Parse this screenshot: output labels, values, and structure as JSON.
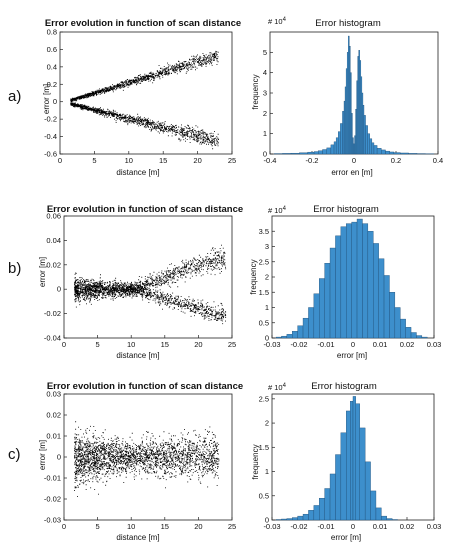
{
  "rows": [
    {
      "label": "a)",
      "scatter": {
        "title": "Error evolution in function of scan distance",
        "xlabel": "distance [m]",
        "ylabel": "error [m]",
        "xticks": [
          "0",
          "5",
          "10",
          "15",
          "20",
          "25"
        ],
        "yticks": [
          "-0.6",
          "-0.4",
          "-0.2",
          "0",
          "0.2",
          "0.4",
          "0.6",
          "0.8"
        ]
      },
      "histogram": {
        "title": "Error histogram",
        "xlabel": "error en [m]",
        "ylabel": "frequency",
        "multiplier": "# 10",
        "multiplier_exp": "4",
        "xticks": [
          "-0.4",
          "-0.2",
          "0",
          "0.2",
          "0.4"
        ],
        "yticks": [
          "0",
          "1",
          "2",
          "3",
          "4",
          "5"
        ]
      }
    },
    {
      "label": "b)",
      "scatter": {
        "title": "Error evolution in function of scan distance",
        "xlabel": "distance [m]",
        "ylabel": "error [m]",
        "xticks": [
          "0",
          "5",
          "10",
          "15",
          "20",
          "25"
        ],
        "yticks": [
          "-0.04",
          "-0.02",
          "0",
          "0.02",
          "0.04",
          "0.06"
        ]
      },
      "histogram": {
        "title": "Error histogram",
        "xlabel": "error [m]",
        "ylabel": "frequency",
        "multiplier": "# 10",
        "multiplier_exp": "4",
        "xticks": [
          "-0.03",
          "-0.02",
          "-0.01",
          "0",
          "0.01",
          "0.02",
          "0.03"
        ],
        "yticks": [
          "0",
          "0.5",
          "1",
          "1.5",
          "2",
          "2.5",
          "3",
          "3.5"
        ]
      }
    },
    {
      "label": "c)",
      "scatter": {
        "title": "Error evolution in function of scan distance",
        "xlabel": "distance [m]",
        "ylabel": "error [m]",
        "xticks": [
          "0",
          "5",
          "10",
          "15",
          "20",
          "25"
        ],
        "yticks": [
          "-0.03",
          "-0.02",
          "-0.01",
          "0",
          "0.01",
          "0.02",
          "0.03"
        ]
      },
      "histogram": {
        "title": "Error histogram",
        "xlabel": "error [m]",
        "ylabel": "frequency",
        "multiplier": "# 10",
        "multiplier_exp": "4",
        "xticks": [
          "-0.03",
          "-0.02",
          "-0.01",
          "0",
          "0.01",
          "0.02",
          "0.03"
        ],
        "yticks": [
          "0",
          "0.5",
          "1",
          "1.5",
          "2",
          "2.5"
        ]
      }
    }
  ],
  "chart_data": [
    {
      "panel": "a-scatter",
      "type": "scatter",
      "title": "Error evolution in function of scan distance",
      "xlabel": "distance [m]",
      "ylabel": "error [m]",
      "xlim": [
        0,
        25
      ],
      "ylim": [
        -0.6,
        0.8
      ],
      "x_range": [
        1.5,
        23
      ],
      "upper_band": {
        "center_at_x": [
          [
            1.5,
            0.02
          ],
          [
            23,
            0.53
          ]
        ],
        "spread_at_x": [
          [
            1.5,
            0.02
          ],
          [
            23,
            0.1
          ]
        ]
      },
      "lower_band": {
        "center_at_x": [
          [
            1.5,
            -0.02
          ],
          [
            23,
            -0.45
          ]
        ],
        "spread_at_x": [
          [
            1.5,
            0.02
          ],
          [
            23,
            0.12
          ]
        ]
      }
    },
    {
      "panel": "a-histogram",
      "type": "bar",
      "title": "Error histogram",
      "xlabel": "error en [m]",
      "ylabel": "frequency",
      "y_multiplier": 10000,
      "xlim": [
        -0.4,
        0.4
      ],
      "ylim": [
        0,
        6
      ],
      "bin_centers": [
        -0.36,
        -0.32,
        -0.28,
        -0.24,
        -0.2,
        -0.18,
        -0.16,
        -0.14,
        -0.12,
        -0.1,
        -0.09,
        -0.08,
        -0.07,
        -0.06,
        -0.05,
        -0.045,
        -0.04,
        -0.035,
        -0.03,
        -0.025,
        -0.02,
        -0.015,
        -0.01,
        -0.005,
        0,
        0.005,
        0.01,
        0.015,
        0.02,
        0.025,
        0.03,
        0.035,
        0.04,
        0.045,
        0.05,
        0.06,
        0.07,
        0.08,
        0.09,
        0.1,
        0.12,
        0.14,
        0.16,
        0.18,
        0.2,
        0.24,
        0.28,
        0.32,
        0.36
      ],
      "values": [
        0.02,
        0.03,
        0.04,
        0.06,
        0.09,
        0.12,
        0.16,
        0.22,
        0.3,
        0.45,
        0.6,
        0.8,
        1.1,
        1.5,
        2.1,
        2.6,
        3.3,
        4.2,
        5.0,
        5.8,
        5.3,
        4.0,
        2.0,
        0.8,
        0.5,
        0.9,
        2.2,
        3.6,
        4.8,
        5.1,
        4.6,
        3.8,
        3.0,
        2.4,
        1.9,
        1.4,
        1.0,
        0.75,
        0.55,
        0.42,
        0.28,
        0.2,
        0.14,
        0.1,
        0.07,
        0.05,
        0.03,
        0.02,
        0.01
      ]
    },
    {
      "panel": "b-scatter",
      "type": "scatter",
      "title": "Error evolution in function of scan distance",
      "xlabel": "distance [m]",
      "ylabel": "error [m]",
      "xlim": [
        0,
        25
      ],
      "ylim": [
        -0.04,
        0.06
      ],
      "x_range": [
        1.5,
        24
      ],
      "upper_band": {
        "center_at_x": [
          [
            1.5,
            0.0
          ],
          [
            10,
            0.0
          ],
          [
            23,
            0.025
          ]
        ],
        "spread_at_x": [
          [
            1.5,
            0.012
          ],
          [
            10,
            0.006
          ],
          [
            23,
            0.012
          ]
        ]
      },
      "lower_band": {
        "center_at_x": [
          [
            1.5,
            0.0
          ],
          [
            10,
            0.0
          ],
          [
            23,
            -0.02
          ]
        ],
        "spread_at_x": [
          [
            1.5,
            0.012
          ],
          [
            10,
            0.006
          ],
          [
            23,
            0.008
          ]
        ]
      }
    },
    {
      "panel": "b-histogram",
      "type": "bar",
      "title": "Error histogram",
      "xlabel": "error [m]",
      "ylabel": "frequency",
      "y_multiplier": 10000,
      "xlim": [
        -0.03,
        0.03
      ],
      "ylim": [
        0,
        4
      ],
      "bin_centers": [
        -0.0275,
        -0.0255,
        -0.0235,
        -0.0215,
        -0.0195,
        -0.0175,
        -0.0155,
        -0.0135,
        -0.0115,
        -0.0095,
        -0.0075,
        -0.0055,
        -0.0035,
        -0.0015,
        0.0005,
        0.0025,
        0.0045,
        0.0065,
        0.0085,
        0.0105,
        0.0125,
        0.0145,
        0.0165,
        0.0185,
        0.0205,
        0.0225,
        0.0245,
        0.0265
      ],
      "values": [
        0.03,
        0.06,
        0.12,
        0.22,
        0.4,
        0.65,
        1.0,
        1.45,
        1.95,
        2.45,
        2.95,
        3.35,
        3.65,
        3.75,
        3.8,
        3.9,
        3.75,
        3.5,
        3.1,
        2.6,
        2.05,
        1.5,
        1.0,
        0.62,
        0.35,
        0.18,
        0.08,
        0.03
      ]
    },
    {
      "panel": "c-scatter",
      "type": "scatter",
      "title": "Error evolution in function of scan distance",
      "xlabel": "distance [m]",
      "ylabel": "error [m]",
      "xlim": [
        0,
        25
      ],
      "ylim": [
        -0.03,
        0.03
      ],
      "x_range": [
        1.5,
        23
      ],
      "cloud": {
        "center": 0.0,
        "spread_at_x": [
          [
            1.5,
            0.014
          ],
          [
            10,
            0.008
          ],
          [
            22,
            0.012
          ]
        ]
      }
    },
    {
      "panel": "c-histogram",
      "type": "bar",
      "title": "Error histogram",
      "xlabel": "error [m]",
      "ylabel": "frequency",
      "y_multiplier": 10000,
      "xlim": [
        -0.03,
        0.03
      ],
      "ylim": [
        0,
        2.6
      ],
      "bin_centers": [
        -0.0275,
        -0.0255,
        -0.0235,
        -0.0215,
        -0.0195,
        -0.0175,
        -0.0155,
        -0.0135,
        -0.0115,
        -0.0095,
        -0.0075,
        -0.0055,
        -0.0035,
        -0.0015,
        -0.0005,
        0.0005,
        0.0015,
        0.0035,
        0.0055,
        0.0075,
        0.0095,
        0.0115,
        0.0135,
        0.0155
      ],
      "values": [
        0.01,
        0.02,
        0.03,
        0.05,
        0.08,
        0.12,
        0.2,
        0.3,
        0.45,
        0.65,
        0.95,
        1.35,
        1.8,
        2.25,
        2.45,
        2.55,
        2.4,
        1.9,
        1.2,
        0.6,
        0.25,
        0.08,
        0.03,
        0.01
      ]
    }
  ]
}
